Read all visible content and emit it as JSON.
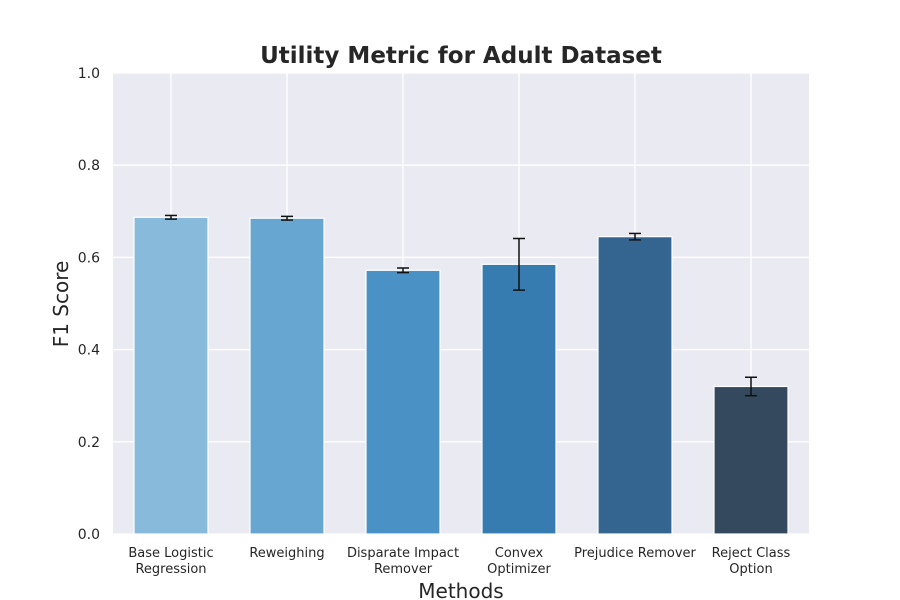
{
  "chart_data": {
    "type": "bar",
    "title": "Utility Metric for Adult Dataset",
    "xlabel": "Methods",
    "ylabel": "F1 Score",
    "ylim": [
      0,
      1.0
    ],
    "yticks": [
      "0.0",
      "0.2",
      "0.4",
      "0.6",
      "0.8",
      "1.0"
    ],
    "grid": true,
    "categories": [
      [
        "Base Logistic",
        "Regression"
      ],
      [
        "Reweighing"
      ],
      [
        "Disparate Impact",
        "Remover"
      ],
      [
        "Convex",
        "Optimizer"
      ],
      [
        "Prejudice Remover"
      ],
      [
        "Reject Class",
        "Option"
      ]
    ],
    "values": [
      0.687,
      0.685,
      0.572,
      0.585,
      0.645,
      0.32
    ],
    "errors": [
      0.004,
      0.004,
      0.005,
      0.056,
      0.007,
      0.02
    ],
    "colors": [
      "#88bbdb",
      "#66a6d0",
      "#4a92c6",
      "#377cb0",
      "#346590",
      "#34495d"
    ],
    "background": "#eaeaf2",
    "grid_color": "#ffffff"
  }
}
